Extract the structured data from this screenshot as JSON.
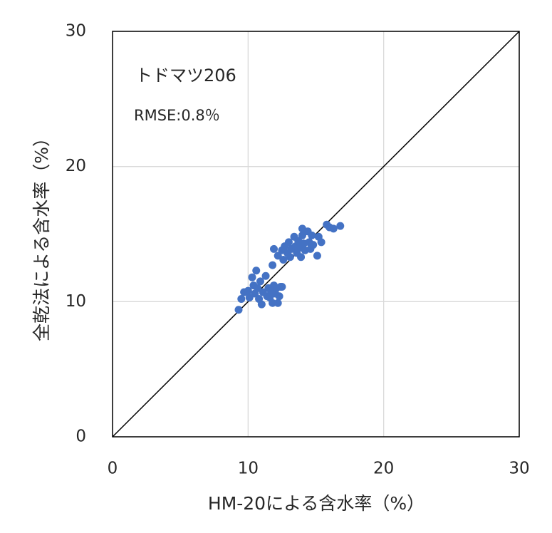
{
  "chart_data": {
    "type": "scatter",
    "x_label": "HM-20による含水率（%）",
    "y_label": "全乾法による含水率（%）",
    "annotations": [
      "トドマツ206",
      "RMSE:0.8％"
    ],
    "xlim": [
      0,
      30
    ],
    "ylim": [
      0,
      30
    ],
    "xticks": [
      0,
      10,
      20,
      30
    ],
    "yticks": [
      0,
      10,
      20,
      30
    ],
    "grid": true,
    "series": [
      {
        "color": "#4472c4",
        "x": [
          9.3,
          9.5,
          9.7,
          10.0,
          10.1,
          10.3,
          10.4,
          10.5,
          10.6,
          10.7,
          10.8,
          10.9,
          11.0,
          11.1,
          11.3,
          11.4,
          11.5,
          11.6,
          11.7,
          11.8,
          11.9,
          12.0,
          12.1,
          12.2,
          12.3,
          12.4,
          12.5,
          11.9,
          11.8,
          12.2,
          12.5,
          12.6,
          12.7,
          12.9,
          13.0,
          13.1,
          13.2,
          13.4,
          13.5,
          13.6,
          13.7,
          13.8,
          13.9,
          14.0,
          14.0,
          14.1,
          14.2,
          14.4,
          14.5,
          14.6,
          14.7,
          14.8,
          15.1,
          15.2,
          15.4,
          15.8,
          16.0,
          16.3,
          16.8
        ],
        "values": [
          9.4,
          10.2,
          10.7,
          10.8,
          10.3,
          11.8,
          11.2,
          10.6,
          12.3,
          11.0,
          10.2,
          11.5,
          9.8,
          10.7,
          11.9,
          10.4,
          11.0,
          10.3,
          10.7,
          9.9,
          11.2,
          10.6,
          11.0,
          9.9,
          10.4,
          11.1,
          11.1,
          13.9,
          12.7,
          13.4,
          13.8,
          13.1,
          14.1,
          13.6,
          14.4,
          13.3,
          13.9,
          14.8,
          14.1,
          13.6,
          14.5,
          14.0,
          13.3,
          14.9,
          15.4,
          14.3,
          13.8,
          15.2,
          14.4,
          13.9,
          14.9,
          14.2,
          13.4,
          14.8,
          14.4,
          15.7,
          15.5,
          15.4,
          15.6
        ]
      }
    ]
  }
}
